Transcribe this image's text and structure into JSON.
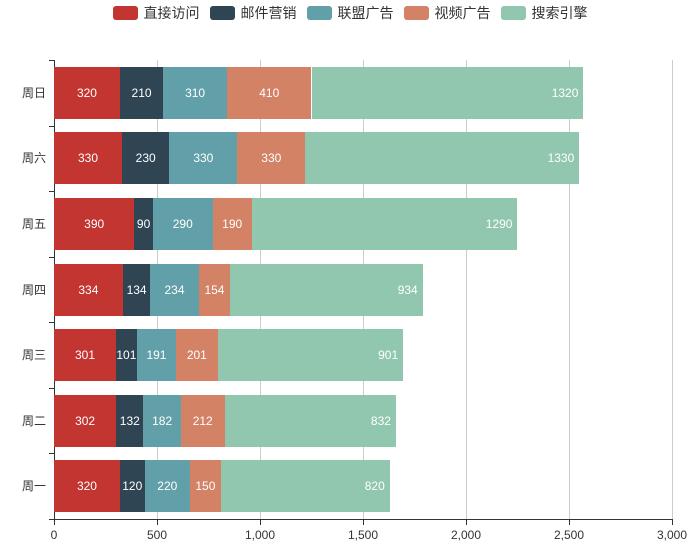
{
  "chart_data": {
    "type": "bar",
    "orientation": "horizontal",
    "stacked": true,
    "title": "",
    "xlabel": "",
    "ylabel": "",
    "categories": [
      "周日",
      "周六",
      "周五",
      "周四",
      "周三",
      "周二",
      "周一"
    ],
    "series": [
      {
        "name": "直接访问",
        "color": "#c23531",
        "values": [
          320,
          330,
          390,
          334,
          301,
          302,
          320
        ]
      },
      {
        "name": "邮件营销",
        "color": "#2f4554",
        "values": [
          210,
          230,
          90,
          134,
          101,
          132,
          120
        ]
      },
      {
        "name": "联盟广告",
        "color": "#61a0a8",
        "values": [
          310,
          330,
          290,
          234,
          191,
          182,
          220
        ]
      },
      {
        "name": "视频广告",
        "color": "#d48265",
        "values": [
          410,
          330,
          190,
          154,
          201,
          212,
          150
        ]
      },
      {
        "name": "搜索引擎",
        "color": "#91c7ae",
        "values": [
          1320,
          1330,
          1290,
          934,
          901,
          832,
          820
        ]
      }
    ],
    "xlim": [
      0,
      3000
    ],
    "x_tick_values": [
      0,
      500,
      1000,
      1500,
      2000,
      2500,
      3000
    ],
    "x_tick_labels": [
      "0",
      "500",
      "1,000",
      "1,500",
      "2,000",
      "2,500",
      "3,000"
    ],
    "grid": true,
    "legend_position": "top",
    "value_label_color": "#ffffff",
    "axis_color": "#333333",
    "grid_color": "#cccccc",
    "axis_label_color": "#333333"
  }
}
